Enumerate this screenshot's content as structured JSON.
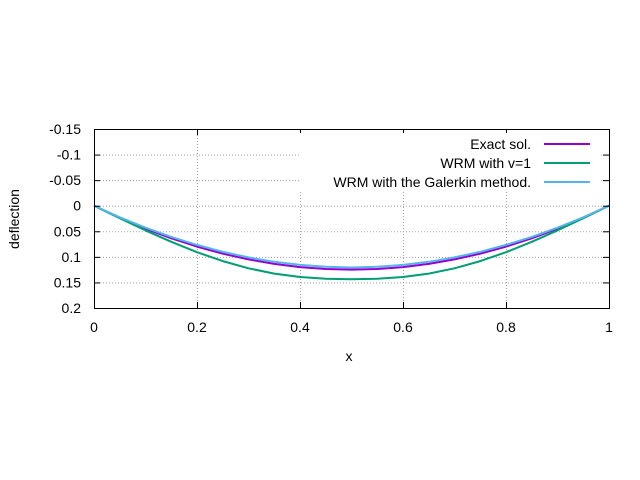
{
  "chart_data": {
    "type": "line",
    "xlabel": "x",
    "ylabel": "deflection",
    "xlim": [
      0,
      1
    ],
    "ylim": [
      -0.15,
      0.2
    ],
    "y_inverted": true,
    "grid": true,
    "legend_position": "top-right",
    "x_ticks": [
      "0",
      "0.2",
      "0.4",
      "0.6",
      "0.8",
      "1"
    ],
    "x_tick_values": [
      0,
      0.2,
      0.4,
      0.6,
      0.8,
      1
    ],
    "y_ticks": [
      "-0.15",
      "-0.1",
      "-0.05",
      "0",
      "0.05",
      "0.1",
      "0.15",
      "0.2"
    ],
    "y_tick_values": [
      -0.15,
      -0.1,
      -0.05,
      0,
      0.05,
      0.1,
      0.15,
      0.2
    ],
    "x": [
      0,
      0.05,
      0.1,
      0.15,
      0.2,
      0.25,
      0.3,
      0.35,
      0.4,
      0.45,
      0.5,
      0.55,
      0.6,
      0.65,
      0.7,
      0.75,
      0.8,
      0.85,
      0.9,
      0.95,
      1
    ],
    "series": [
      {
        "name": "Exact sol.",
        "color": "#9400d3",
        "values": [
          0,
          0.0238,
          0.0449,
          0.0638,
          0.08,
          0.0938,
          0.105,
          0.1138,
          0.12,
          0.1238,
          0.125,
          0.1238,
          0.12,
          0.1138,
          0.105,
          0.0938,
          0.08,
          0.0638,
          0.0449,
          0.0238,
          0
        ]
      },
      {
        "name": "WRM with v=1",
        "color": "#009e73",
        "values": [
          0,
          0.0245,
          0.0483,
          0.0706,
          0.0908,
          0.1082,
          0.1223,
          0.1328,
          0.1393,
          0.1428,
          0.1438,
          0.1428,
          0.1393,
          0.1328,
          0.1223,
          0.1082,
          0.0908,
          0.0706,
          0.0483,
          0.0245,
          0
        ]
      },
      {
        "name": "WRM with the Galerkin method.",
        "color": "#56b4e9",
        "values": [
          0,
          0.0227,
          0.043,
          0.061,
          0.0767,
          0.0901,
          0.101,
          0.1096,
          0.1157,
          0.1195,
          0.1208,
          0.1195,
          0.1157,
          0.1096,
          0.101,
          0.0901,
          0.0767,
          0.061,
          0.043,
          0.0227,
          0
        ]
      }
    ]
  }
}
